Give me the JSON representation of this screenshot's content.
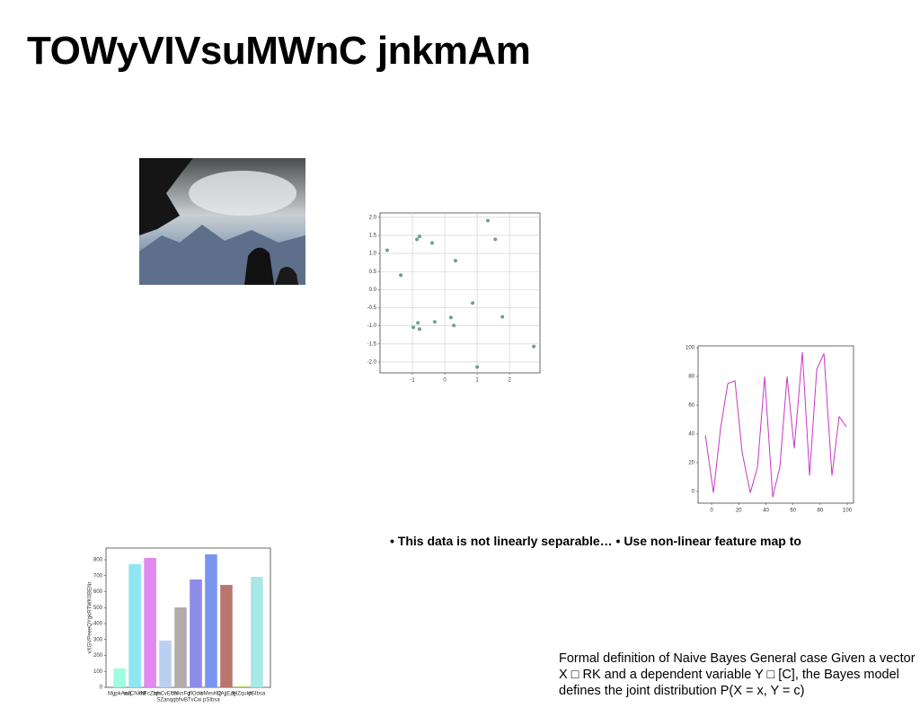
{
  "slide": {
    "title": "TOWyVIVsuMWnC jnkmAm",
    "bullets": "• This data is not linearly separable… • Use non-linear feature map to",
    "note": "Formal definition of Naive Bayes General case Given a vector X □ RK and a dependent variable Y □ [C], the Bayes model defines the joint distribution P(X = x, Y = c)"
  },
  "chart_data": [
    {
      "type": "scatter",
      "color": "#6f9e9a",
      "grid": true,
      "x": [
        -1.78,
        -1.36,
        -0.86,
        -0.78,
        -0.39,
        0.33,
        1.33,
        1.56,
        0.86,
        1.78,
        0.19,
        0.28,
        -0.31,
        -0.83,
        -0.97,
        -0.78,
        1.0,
        2.75
      ],
      "values": [
        1.09,
        0.4,
        1.39,
        1.47,
        1.29,
        0.8,
        1.91,
        1.39,
        -0.37,
        -0.75,
        -0.77,
        -0.99,
        -0.89,
        -0.92,
        -1.04,
        -1.09,
        -2.14,
        -1.57
      ],
      "xlim": [
        -2.0,
        2.94
      ],
      "ylim": [
        -2.3,
        2.12
      ],
      "xticks": [
        -1,
        0,
        1,
        2
      ],
      "yticks": [
        {
          "value": 2.0,
          "label": "2.0"
        },
        1.5,
        {
          "value": 1.0,
          "label": "1.0"
        },
        0.5,
        {
          "value": 0.0,
          "label": "0.0"
        },
        -0.5,
        {
          "value": -1.0,
          "label": "-1.0"
        },
        -1.5,
        {
          "value": -2.0,
          "label": "-2.0"
        }
      ]
    },
    {
      "type": "line",
      "color": "#c837c8",
      "grid": false,
      "x": [
        -4.6,
        1.3,
        6.6,
        11.9,
        17.2,
        22.5,
        28.5,
        33.8,
        39.1,
        45,
        50.3,
        55.6,
        60.9,
        66.9,
        72.2,
        77.5,
        82.8,
        88.7,
        94,
        99.3
      ],
      "values": [
        39,
        -1,
        44,
        75,
        77,
        27,
        -1,
        17,
        80,
        -4,
        17,
        80,
        30,
        97,
        11,
        85,
        96,
        11,
        52,
        45
      ],
      "xlim": [
        -10,
        104.6
      ],
      "ylim": [
        -8.2,
        101.3
      ],
      "xticks": [
        0,
        20,
        40,
        60,
        80,
        100
      ],
      "yticks": [
        0,
        20,
        40,
        60,
        80,
        100
      ]
    },
    {
      "type": "bar",
      "grid": false,
      "x_label": "SZanqqbhvBTvCw pSIbsa",
      "y_label": "vXGVPeeeQYgkRTWK0BENr",
      "categories": [
        "MgpkAwq",
        "wJCNkNt",
        "htFcZbm",
        "iqhCvEUa",
        "bNknFq",
        "jflOdw",
        "hMesKQ",
        "UAjjEzg",
        "JHZqukh",
        "pSIbsa"
      ],
      "values": [
        118,
        772,
        811,
        293,
        501,
        676,
        834,
        642,
        5,
        693
      ],
      "colors": [
        "#9ffce0",
        "#8fe6f2",
        "#e08af0",
        "#b9d0f2",
        "#b0acaa",
        "#8d8ae8",
        "#7a95f0",
        "#b9766f",
        "#9acd32",
        "#a8e8e6"
      ],
      "ylim": [
        0,
        873
      ],
      "yticks": [
        0,
        100,
        200,
        300,
        400,
        500,
        600,
        700,
        800
      ]
    }
  ]
}
